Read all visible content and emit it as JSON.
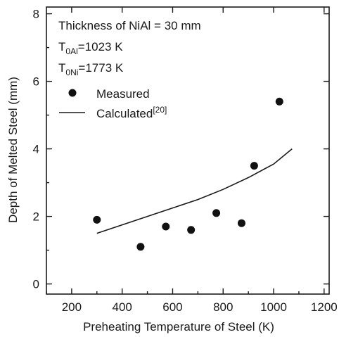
{
  "chart_data": {
    "type": "scatter",
    "xlabel": "Preheating Temperature of Steel  (K)",
    "ylabel": "Depth of Melted Steel  (mm)",
    "xlim": [
      100,
      1220
    ],
    "ylim": [
      -0.3,
      8.2
    ],
    "xticks": [
      200,
      400,
      600,
      800,
      1000,
      1200
    ],
    "yticks": [
      0,
      2,
      4,
      6,
      8
    ],
    "xtick_labels": [
      "200",
      "400",
      "600",
      "800",
      "1000",
      "1200"
    ],
    "ytick_labels": [
      "0",
      "2",
      "4",
      "6",
      "8"
    ],
    "grid": false,
    "legend_position": "upper-left",
    "annotations": {
      "thickness": "Thickness of NiAl = 30 mm",
      "t_al_main": "T",
      "t_al_sub": "0Al",
      "t_al_value": "=1023 K",
      "t_ni_main": "T",
      "t_ni_sub": "0Ni",
      "t_ni_value": "=1773 K"
    },
    "series": [
      {
        "name": "Measured",
        "kind": "scatter",
        "marker": "filled-circle",
        "color": "#111111",
        "x": [
          300,
          473,
          573,
          673,
          773,
          873,
          923,
          1023
        ],
        "y": [
          1.9,
          1.1,
          1.7,
          1.6,
          2.1,
          1.8,
          3.5,
          5.4
        ]
      },
      {
        "name": "Calculated",
        "name_superscript": "[20]",
        "kind": "line",
        "color": "#1a1a1a",
        "x": [
          300,
          400,
          500,
          600,
          700,
          800,
          900,
          1000,
          1073
        ],
        "y": [
          1.5,
          1.75,
          2.0,
          2.25,
          2.5,
          2.8,
          3.15,
          3.55,
          4.0
        ]
      }
    ]
  }
}
